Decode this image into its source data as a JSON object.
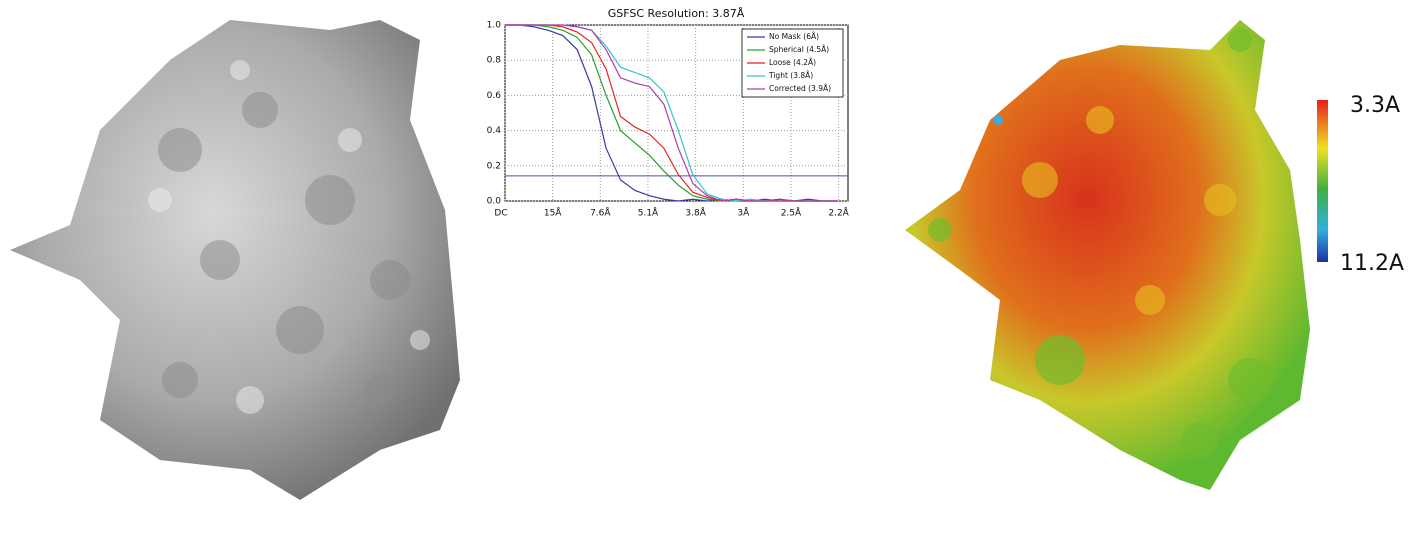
{
  "chart_data": {
    "type": "line",
    "title": "GSFSC Resolution: 3.87Å",
    "x": [
      0,
      0.02,
      0.04,
      0.06,
      0.08,
      0.1,
      0.12,
      0.14,
      0.16,
      0.18,
      0.2,
      0.22,
      0.24,
      0.26,
      0.28,
      0.3,
      0.32,
      0.34,
      0.36,
      0.38,
      0.4,
      0.42,
      0.44,
      0.46
    ],
    "series": [
      {
        "name": "No Mask (6Å)",
        "color": "#3a3aa8",
        "values": [
          1,
          1,
          0.99,
          0.97,
          0.94,
          0.86,
          0.65,
          0.3,
          0.12,
          0.06,
          0.03,
          0.01,
          0,
          0.01,
          0,
          0.01,
          0,
          0,
          0.01,
          0,
          0,
          0.01,
          0,
          0
        ]
      },
      {
        "name": "Spherical (4.5Å)",
        "color": "#2ca02c",
        "values": [
          1,
          1,
          1,
          0.99,
          0.97,
          0.93,
          0.83,
          0.6,
          0.4,
          0.33,
          0.26,
          0.17,
          0.09,
          0.03,
          0.01,
          0,
          0.01,
          0,
          0,
          0.01,
          0,
          0,
          0,
          0
        ]
      },
      {
        "name": "Loose (4.2Å)",
        "color": "#e8231f",
        "values": [
          1,
          1,
          1,
          1,
          0.99,
          0.96,
          0.9,
          0.75,
          0.48,
          0.42,
          0.38,
          0.3,
          0.15,
          0.05,
          0.02,
          0,
          0.01,
          0,
          0,
          0.01,
          0,
          0,
          0,
          0
        ]
      },
      {
        "name": "Tight (3.8Å)",
        "color": "#38c4c8",
        "values": [
          1,
          1,
          1,
          1,
          1,
          0.99,
          0.97,
          0.88,
          0.76,
          0.73,
          0.7,
          0.62,
          0.4,
          0.15,
          0.04,
          0.01,
          0,
          0.01,
          0,
          0,
          0,
          0,
          0,
          0
        ]
      },
      {
        "name": "Corrected (3.9Å)",
        "color": "#b23ab2",
        "values": [
          1,
          1,
          1,
          1,
          1,
          0.99,
          0.97,
          0.86,
          0.7,
          0.67,
          0.65,
          0.55,
          0.3,
          0.1,
          0.03,
          0,
          0.01,
          0,
          0,
          0,
          0,
          0,
          0,
          0
        ]
      }
    ],
    "threshold": 0.143,
    "threshold_color": "#4a4ab8",
    "xlim": [
      0,
      0.475
    ],
    "xticks": [
      {
        "value": 0,
        "label": "DC"
      },
      {
        "value": 0.066,
        "label": "15Å"
      },
      {
        "value": 0.132,
        "label": "7.6Å"
      },
      {
        "value": 0.198,
        "label": "5.1Å"
      },
      {
        "value": 0.264,
        "label": "3.8Å"
      },
      {
        "value": 0.33,
        "label": "3Å"
      },
      {
        "value": 0.396,
        "label": "2.5Å"
      },
      {
        "value": 0.462,
        "label": "2.2Å"
      }
    ],
    "ylim": [
      0,
      1
    ],
    "yticks": [
      {
        "value": 0,
        "label": "0.0"
      },
      0.2,
      0.4,
      0.6,
      0.8,
      {
        "value": 1,
        "label": "1.0"
      }
    ],
    "grid": true
  },
  "colorbar": {
    "top_label": "3.3A",
    "bottom_label": "11.2A"
  }
}
